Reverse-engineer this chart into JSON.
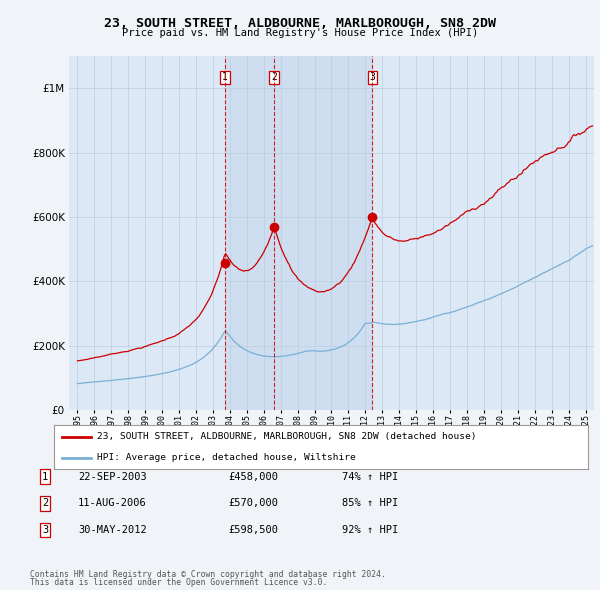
{
  "title": "23, SOUTH STREET, ALDBOURNE, MARLBOROUGH, SN8 2DW",
  "subtitle": "Price paid vs. HM Land Registry's House Price Index (HPI)",
  "legend_label_red": "23, SOUTH STREET, ALDBOURNE, MARLBOROUGH, SN8 2DW (detached house)",
  "legend_label_blue": "HPI: Average price, detached house, Wiltshire",
  "footer1": "Contains HM Land Registry data © Crown copyright and database right 2024.",
  "footer2": "This data is licensed under the Open Government Licence v3.0.",
  "transactions": [
    {
      "num": 1,
      "date": "22-SEP-2003",
      "price": "£458,000",
      "hpi": "74% ↑ HPI",
      "year": 2003.72
    },
    {
      "num": 2,
      "date": "11-AUG-2006",
      "price": "£570,000",
      "hpi": "85% ↑ HPI",
      "year": 2006.61
    },
    {
      "num": 3,
      "date": "30-MAY-2012",
      "price": "£598,500",
      "hpi": "92% ↑ HPI",
      "year": 2012.41
    }
  ],
  "background_color": "#f0f4f8",
  "plot_bg": "#dce8f5",
  "red_color": "#cc0000",
  "blue_color": "#7ab0d4",
  "dashed_color": "#cc0000",
  "shade_color": "#c5d8ee",
  "ylim": [
    0,
    1100000
  ],
  "xlim": [
    1994.5,
    2025.5
  ],
  "yticks": [
    0,
    200000,
    400000,
    600000,
    800000,
    1000000
  ],
  "marker_prices": [
    458000,
    570000,
    598500
  ]
}
